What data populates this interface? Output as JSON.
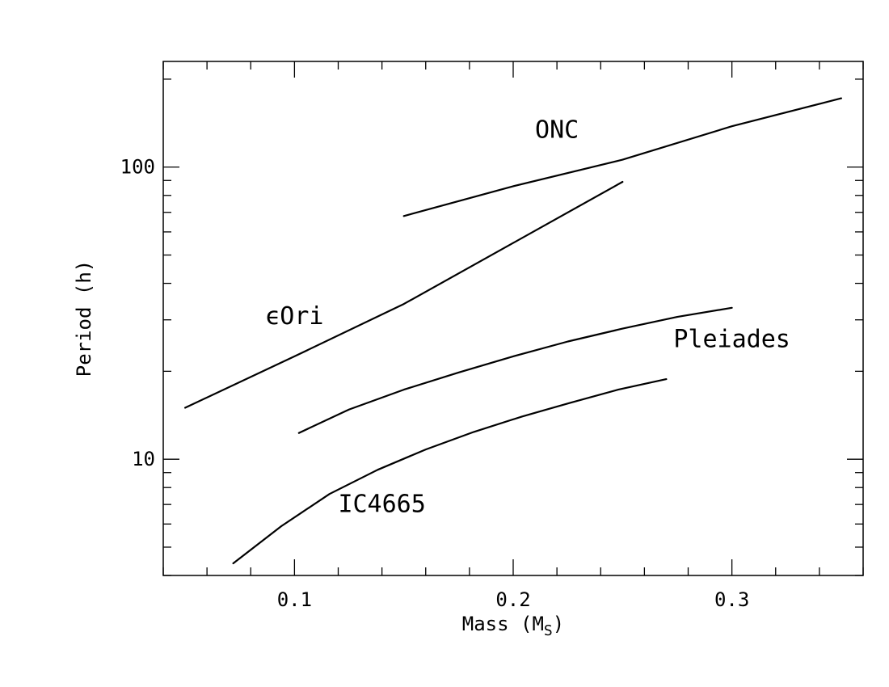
{
  "chart_data": {
    "type": "line",
    "title": "",
    "xlabel": "Mass (M",
    "xlabel_sub": "S",
    "xlabel_close": ")",
    "ylabel": "Period (h)",
    "xlim": [
      0.04,
      0.36
    ],
    "ylim": [
      4,
      230
    ],
    "yscale": "log",
    "grid": false,
    "x_ticks": [
      {
        "value": 0.1,
        "label": "0.1"
      },
      {
        "value": 0.2,
        "label": "0.2"
      },
      {
        "value": 0.3,
        "label": "0.3"
      }
    ],
    "y_ticks": [
      {
        "value": 10,
        "label": "10"
      },
      {
        "value": 100,
        "label": "100"
      }
    ],
    "series": [
      {
        "name": "ONC",
        "label_at": [
          0.22,
          126
        ],
        "x": [
          0.15,
          0.2,
          0.25,
          0.3,
          0.35
        ],
        "y": [
          68,
          86,
          106,
          138,
          172
        ]
      },
      {
        "name": "ϵOri",
        "label_at": [
          0.1,
          29
        ],
        "x": [
          0.05,
          0.1,
          0.15,
          0.2,
          0.25
        ],
        "y": [
          15,
          22.5,
          34,
          55,
          89
        ]
      },
      {
        "name": "Pleiades",
        "label_at": [
          0.3,
          24.2
        ],
        "x": [
          0.102,
          0.125,
          0.15,
          0.175,
          0.2,
          0.225,
          0.25,
          0.275,
          0.3
        ],
        "y": [
          12.3,
          14.8,
          17.3,
          19.8,
          22.5,
          25.3,
          28,
          30.7,
          33
        ]
      },
      {
        "name": "IC4665",
        "label_at": [
          0.14,
          6.6
        ],
        "x": [
          0.072,
          0.094,
          0.116,
          0.138,
          0.16,
          0.182,
          0.204,
          0.226,
          0.248,
          0.27
        ],
        "y": [
          4.4,
          5.9,
          7.6,
          9.2,
          10.8,
          12.4,
          14,
          15.6,
          17.3,
          18.8
        ]
      }
    ]
  }
}
